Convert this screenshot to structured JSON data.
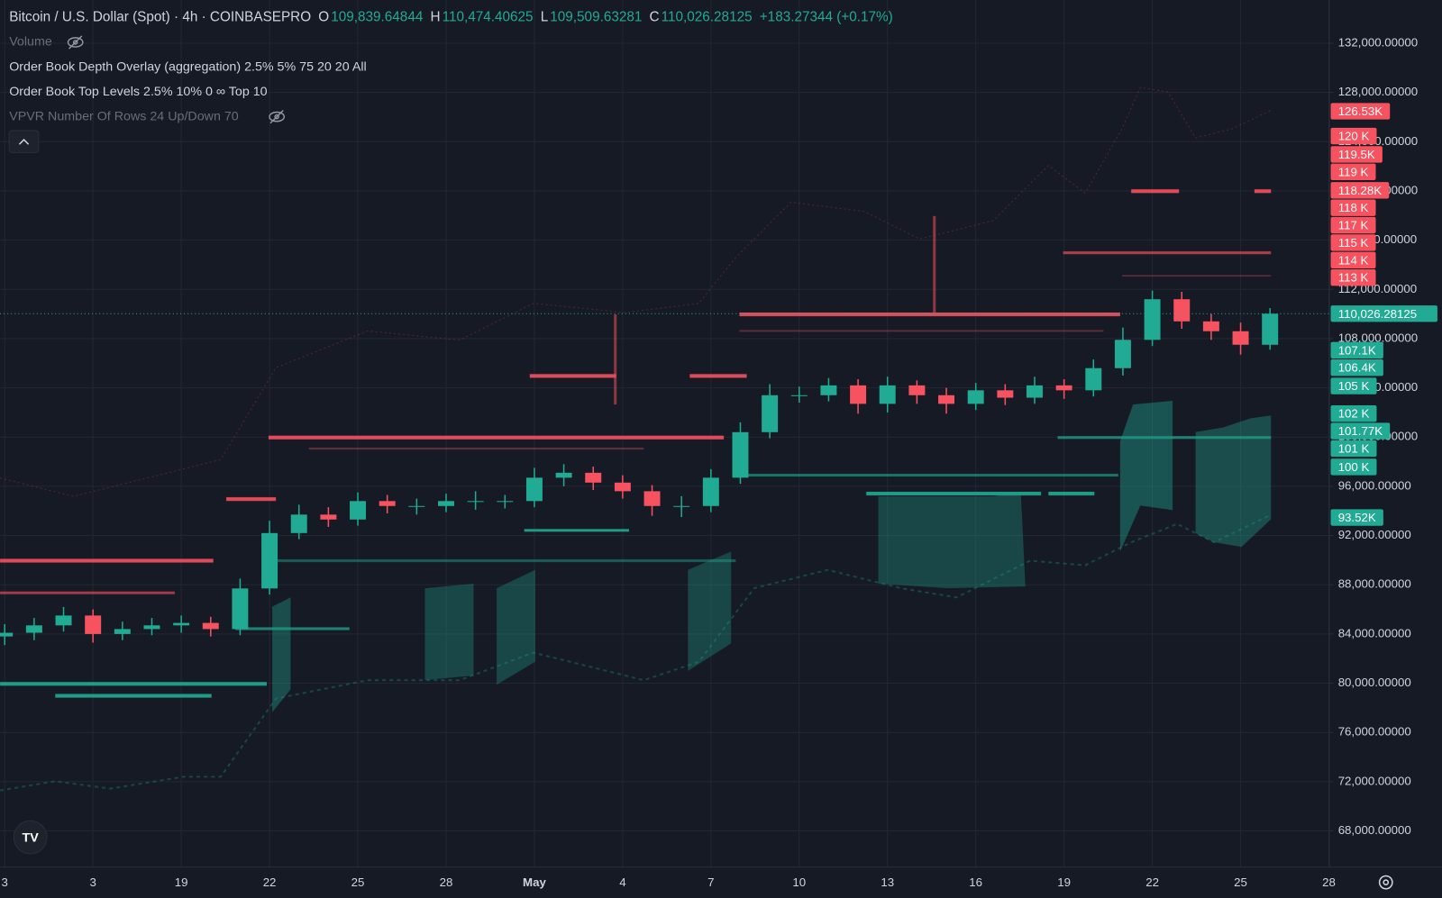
{
  "chart_data": {
    "type": "candlestick",
    "title": "Bitcoin / U.S. Dollar (Spot) · 4h · COINBASEPRO",
    "ohlc": [
      {
        "key": "O",
        "text": "109,839.64844"
      },
      {
        "key": "H",
        "text": "110,474.40625"
      },
      {
        "key": "L",
        "text": "109,509.63281"
      },
      {
        "key": "C",
        "text": "110,026.28125"
      }
    ],
    "change": "+183.27344 (+0.17%)",
    "indicators": [
      "Volume",
      "Order Book Depth Overlay (aggregation) 2.5% 5% 75 20 20 All",
      "Order Book Top Levels 2.5% 10% 0 ∞ Top 10",
      "VPVR Number Of Rows 24 Up/Down 70"
    ],
    "up_color": "#22ab94",
    "down_color": "#f7525f",
    "x": [
      0,
      1,
      2,
      3,
      4,
      5,
      6,
      7,
      8,
      9,
      10,
      11,
      12,
      13,
      14,
      15,
      16,
      17,
      18,
      19,
      20,
      21,
      22,
      23,
      24,
      25,
      26,
      27,
      28,
      29,
      30,
      31,
      32,
      33,
      34,
      35,
      36,
      37,
      38,
      39,
      40,
      41,
      42,
      43
    ],
    "open": [
      83800,
      84100,
      84700,
      85500,
      84000,
      84400,
      84700,
      84900,
      84400,
      87700,
      92200,
      93700,
      93300,
      94800,
      94400,
      94400,
      94800,
      94800,
      94800,
      96700,
      97100,
      96300,
      95600,
      94400,
      94400,
      96700,
      100400,
      103400,
      103400,
      104200,
      102700,
      104200,
      103400,
      102700,
      103800,
      103200,
      104200,
      103800,
      105600,
      107900,
      111200,
      109400,
      108600,
      107500
    ],
    "high": [
      84800,
      85300,
      86200,
      86000,
      85000,
      85300,
      85500,
      85400,
      88500,
      93200,
      94500,
      94300,
      95500,
      95300,
      95000,
      95400,
      95600,
      95300,
      97500,
      97800,
      97600,
      96900,
      96100,
      95200,
      97400,
      101200,
      104300,
      104100,
      104800,
      104700,
      104900,
      104600,
      104000,
      104400,
      104300,
      104900,
      104700,
      106300,
      108900,
      111900,
      111800,
      110000,
      109300,
      110474
    ],
    "low": [
      83100,
      83500,
      84200,
      83300,
      83500,
      83900,
      84100,
      83800,
      83900,
      87200,
      91700,
      92700,
      92800,
      93800,
      93700,
      93900,
      94100,
      94200,
      94300,
      96000,
      95700,
      95000,
      93600,
      93500,
      93900,
      96200,
      99900,
      102800,
      102900,
      101900,
      102000,
      102700,
      101900,
      102200,
      102600,
      102700,
      103100,
      103300,
      105000,
      107400,
      108800,
      107900,
      106700,
      107100
    ],
    "close": [
      84100,
      84700,
      85500,
      84000,
      84400,
      84700,
      84900,
      84400,
      87700,
      92200,
      93700,
      93300,
      94800,
      94400,
      94400,
      94800,
      94800,
      94800,
      96700,
      97100,
      96300,
      95600,
      94400,
      94400,
      96700,
      100400,
      103400,
      103400,
      104200,
      102700,
      104200,
      103400,
      102700,
      103800,
      103200,
      104200,
      103800,
      105600,
      107900,
      111200,
      109400,
      108600,
      107500,
      110026
    ],
    "xlim": [
      -0.16,
      45
    ],
    "xticks": [
      {
        "value": 0,
        "label": "3"
      },
      3,
      {
        "value": 6,
        "label": "19"
      },
      {
        "value": 9,
        "label": "22"
      },
      {
        "value": 12,
        "label": "25"
      },
      {
        "value": 15,
        "label": "28"
      },
      {
        "value": 18,
        "label": "May"
      },
      {
        "value": 21,
        "label": "4"
      },
      {
        "value": 24,
        "label": "7"
      },
      {
        "value": 27,
        "label": "10"
      },
      {
        "value": 30,
        "label": "13"
      },
      {
        "value": 33,
        "label": "16"
      },
      {
        "value": 36,
        "label": "19"
      },
      {
        "value": 39,
        "label": "22"
      },
      {
        "value": 42,
        "label": "25"
      },
      {
        "value": 45,
        "label": "28"
      }
    ],
    "ylim": [
      65090,
      135510
    ],
    "yticks": [
      {
        "value": 132000,
        "label": "132,000.00000"
      },
      {
        "value": 128000,
        "label": "128,000.00000"
      },
      {
        "value": 124000,
        "label": "124,000.00000"
      },
      {
        "value": 120000,
        "label": "120,000.00000"
      },
      {
        "value": 116000,
        "label": "116,000.00000"
      },
      {
        "value": 112000,
        "label": "112,000.00000"
      },
      {
        "value": 108000,
        "label": "108,000.00000"
      },
      {
        "value": 104000,
        "label": "104,000.00000"
      },
      {
        "value": 100000,
        "label": "100,000.00000"
      },
      {
        "value": 96000,
        "label": "96,000.00000"
      },
      {
        "value": 92000,
        "label": "92,000.00000"
      },
      {
        "value": 88000,
        "label": "88,000.00000"
      },
      {
        "value": 84000,
        "label": "84,000.00000"
      },
      {
        "value": 80000,
        "label": "80,000.00000"
      },
      {
        "value": 76000,
        "label": "76,000.00000"
      },
      {
        "value": 72000,
        "label": "72,000.00000"
      },
      {
        "value": 68000,
        "label": "68,000.00000"
      }
    ],
    "grid": true,
    "last_price": {
      "value": 110026.28125,
      "label": "110,026.28125"
    },
    "ask_tags": [
      "126.53K",
      "120 K",
      "119.5K",
      "119 K",
      "118.28K",
      "118 K",
      "117 K",
      "115 K",
      "114 K",
      "113 K"
    ],
    "bid_tags": [
      "107.1K",
      "106.4K",
      "105 K",
      "102 K",
      "101.77K",
      "101 K",
      "100 K",
      "93.52K"
    ]
  }
}
